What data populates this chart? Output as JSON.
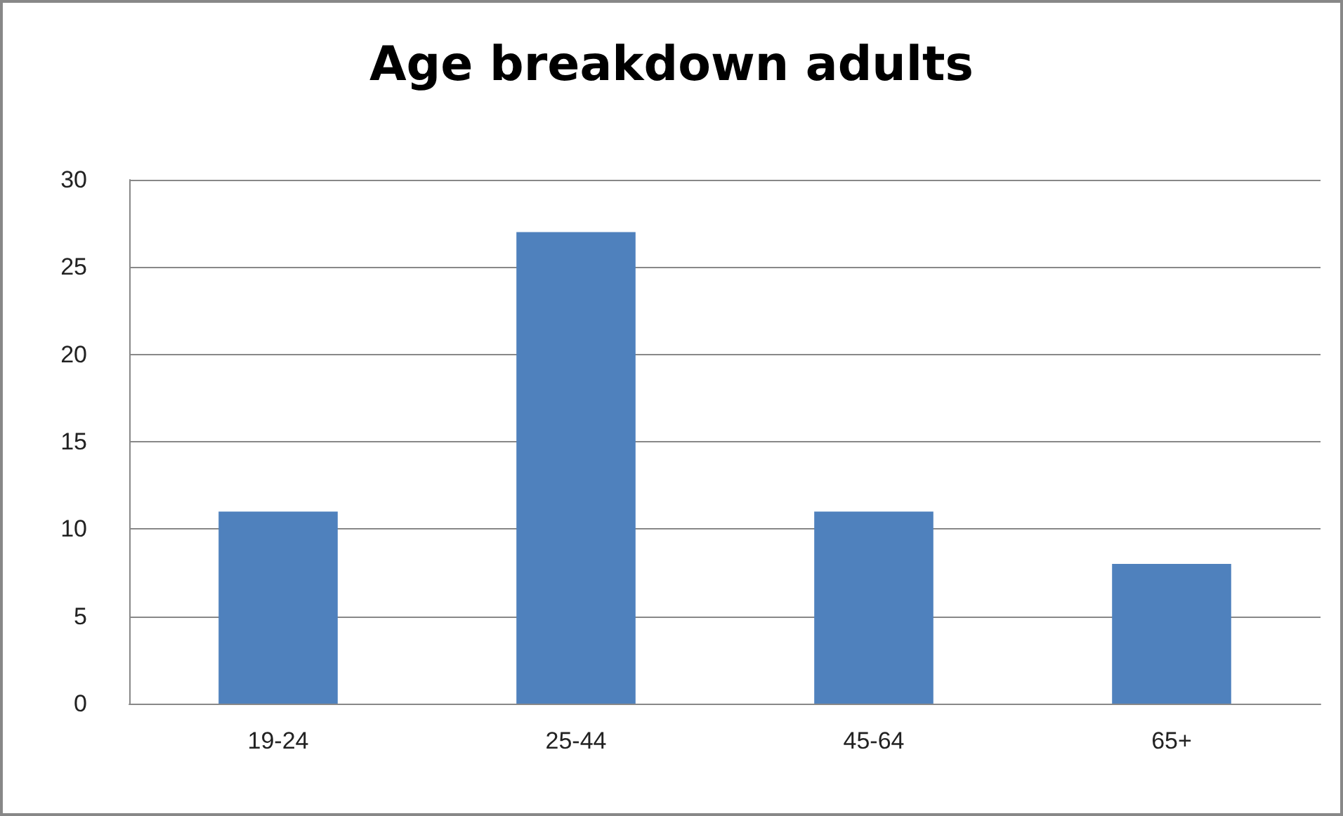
{
  "chart_data": {
    "type": "bar",
    "title": "Age breakdown adults",
    "categories": [
      "19-24",
      "25-44",
      "45-64",
      "65+"
    ],
    "values": [
      11,
      27,
      11,
      8
    ],
    "color": "#4f81bd",
    "ylim": [
      0,
      30
    ],
    "yticks": [
      0,
      5,
      10,
      15,
      20,
      25,
      30
    ],
    "grid": "y"
  }
}
